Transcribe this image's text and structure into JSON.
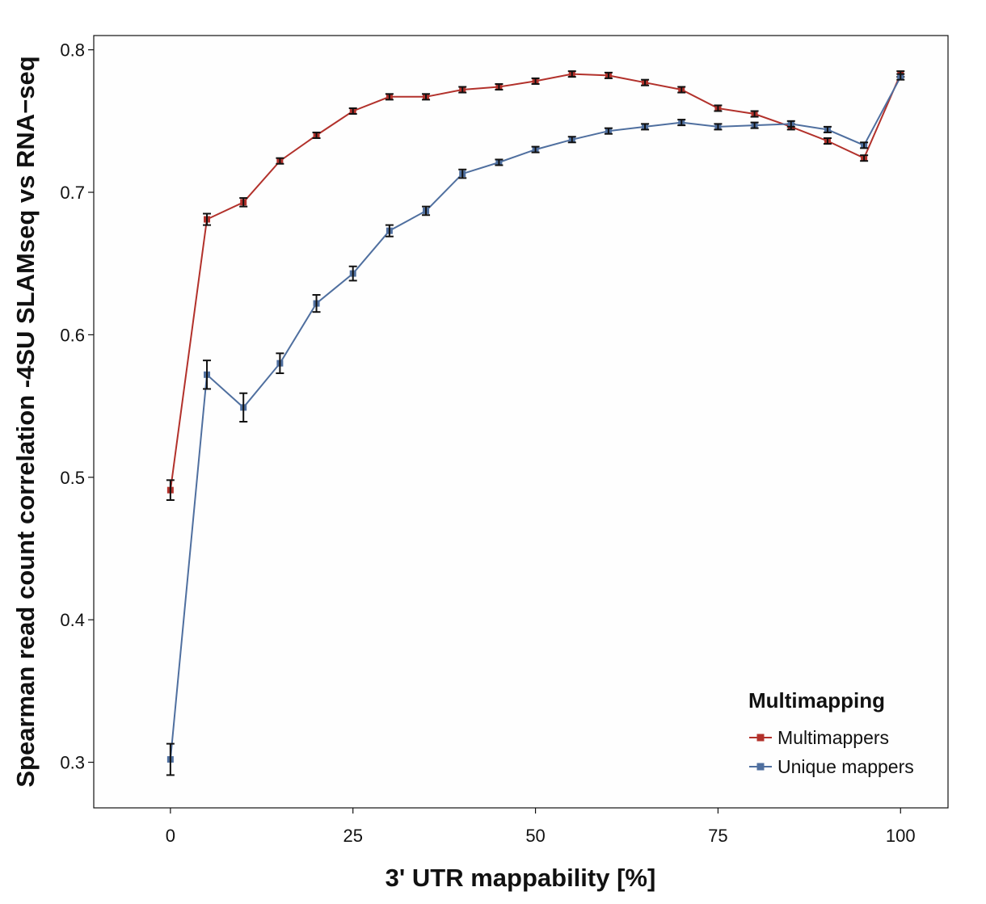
{
  "chart_data": {
    "type": "line",
    "xlabel": "3' UTR mappability [%]",
    "ylabel": "Spearman read count correlation -4SU SLAMseq vs RNA−seq",
    "xlim": [
      -10.5,
      106.5
    ],
    "ylim": [
      0.268,
      0.81
    ],
    "x_ticks": [
      0,
      25,
      50,
      75,
      100
    ],
    "x_tick_labels": [
      "0",
      "25",
      "50",
      "75",
      "100"
    ],
    "y_ticks": [
      0.3,
      0.4,
      0.5,
      0.6,
      0.7,
      0.8
    ],
    "y_tick_labels": [
      "0.3",
      "0.4",
      "0.5",
      "0.6",
      "0.7",
      "0.8"
    ],
    "grid": false,
    "legend_position": "bottom-right",
    "legend_title": "Multimapping",
    "x": [
      0,
      5,
      10,
      15,
      20,
      25,
      30,
      35,
      40,
      45,
      50,
      55,
      60,
      65,
      70,
      75,
      80,
      85,
      90,
      95,
      100
    ],
    "series": [
      {
        "name": "Multimappers",
        "color": "#b2312b",
        "values": [
          0.491,
          0.681,
          0.693,
          0.722,
          0.74,
          0.757,
          0.767,
          0.767,
          0.772,
          0.774,
          0.778,
          0.783,
          0.782,
          0.777,
          0.772,
          0.759,
          0.755,
          0.746,
          0.736,
          0.724,
          0.783
        ],
        "error": [
          0.007,
          0.004,
          0.003,
          0.002,
          0.002,
          0.002,
          0.002,
          0.002,
          0.002,
          0.002,
          0.002,
          0.002,
          0.002,
          0.002,
          0.002,
          0.002,
          0.002,
          0.002,
          0.002,
          0.002,
          0.002
        ]
      },
      {
        "name": "Unique mappers",
        "color": "#4f6f9f",
        "values": [
          0.302,
          0.572,
          0.549,
          0.58,
          0.622,
          0.643,
          0.673,
          0.687,
          0.713,
          0.721,
          0.73,
          0.737,
          0.743,
          0.746,
          0.749,
          0.746,
          0.747,
          0.748,
          0.744,
          0.733,
          0.781
        ],
        "error": [
          0.011,
          0.01,
          0.01,
          0.007,
          0.006,
          0.005,
          0.004,
          0.003,
          0.003,
          0.002,
          0.002,
          0.002,
          0.002,
          0.002,
          0.002,
          0.002,
          0.002,
          0.002,
          0.002,
          0.002,
          0.002
        ]
      }
    ]
  }
}
